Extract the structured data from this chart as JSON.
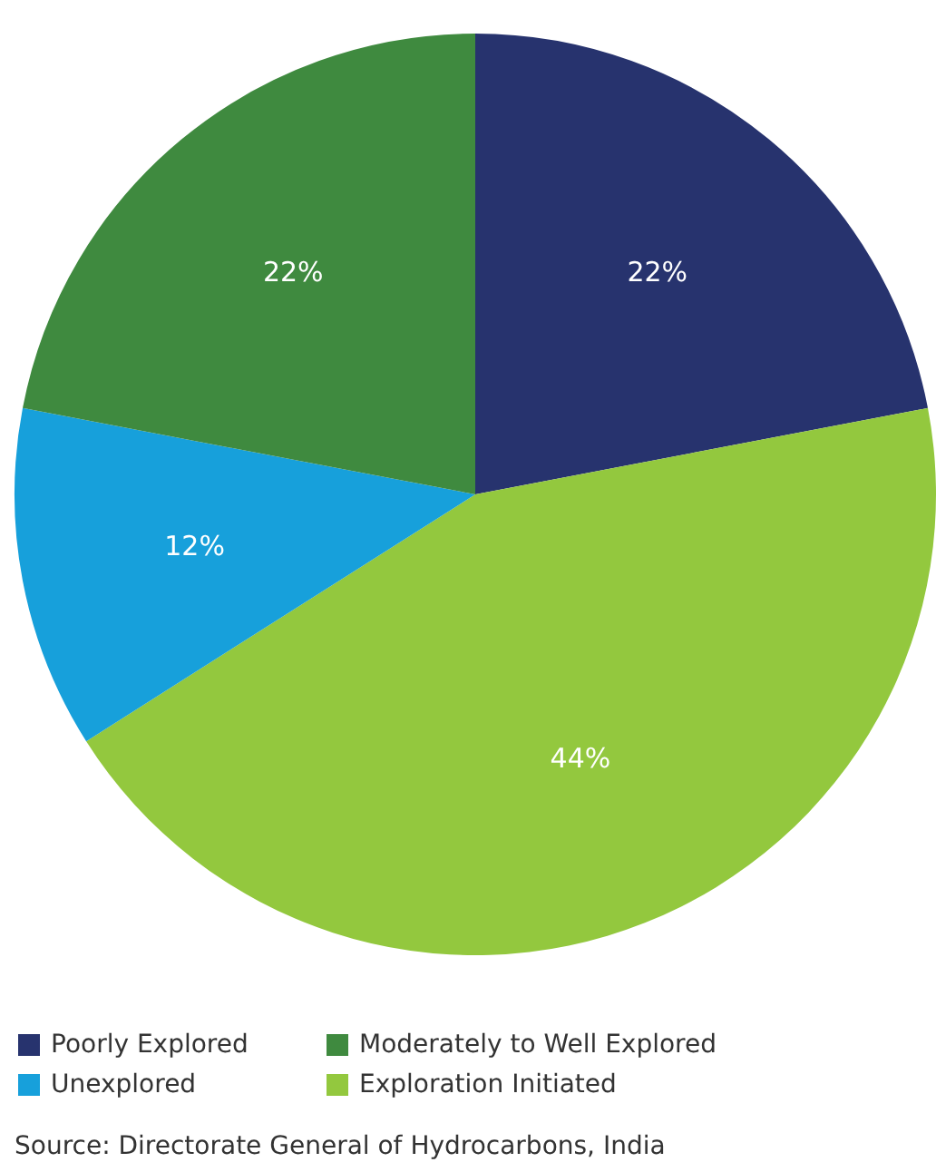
{
  "chart_data": {
    "type": "pie",
    "categories": [
      "Poorly Explored",
      "Exploration Initiated",
      "Unexplored",
      "Moderately to Well Explored"
    ],
    "values": [
      22,
      44,
      12,
      22
    ],
    "colors": [
      "#27336e",
      "#93c83e",
      "#17a0db",
      "#3f8a3f"
    ],
    "value_labels": [
      "22%",
      "44%",
      "12%",
      "22%"
    ],
    "legend": "bottom left",
    "annotations": [
      "Source: Directorate General of Hydrocarbons, India"
    ]
  }
}
